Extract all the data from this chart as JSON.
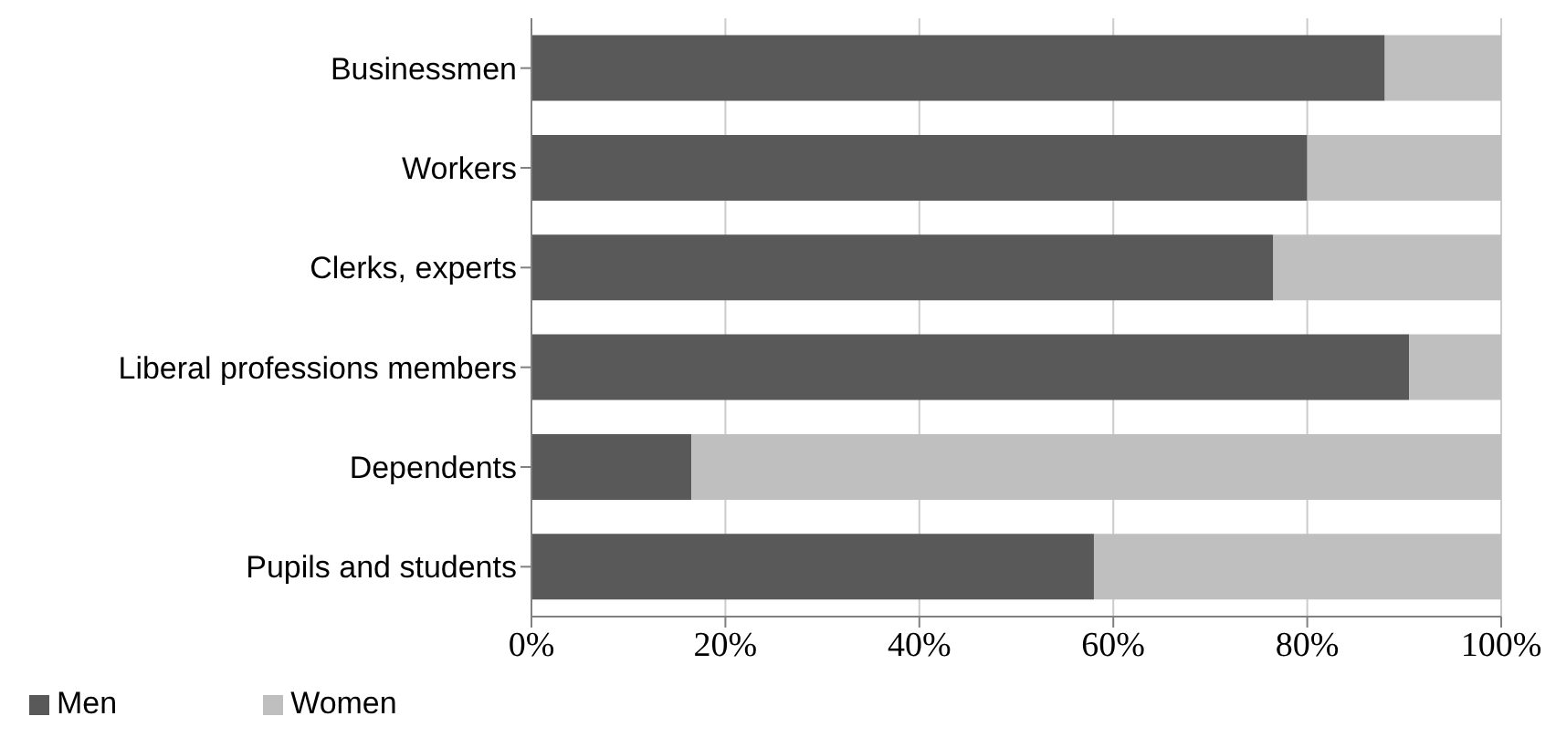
{
  "chart_data": {
    "type": "bar",
    "orientation": "horizontal",
    "stacked": true,
    "categories": [
      "Businessmen",
      "Workers",
      "Clerks, experts",
      "Liberal professions members",
      "Dependents",
      "Pupils and students"
    ],
    "series": [
      {
        "name": "Men",
        "color": "#595959",
        "values": [
          88,
          80,
          76.5,
          90.5,
          16.5,
          58
        ]
      },
      {
        "name": "Women",
        "color": "#bfbfbf",
        "values": [
          12,
          20,
          23.5,
          9.5,
          83.5,
          42
        ]
      }
    ],
    "xlim": [
      0,
      100
    ],
    "xticks": [
      {
        "value": 0,
        "label": "0%"
      },
      {
        "value": 20,
        "label": "20%"
      },
      {
        "value": 40,
        "label": "40%"
      },
      {
        "value": 60,
        "label": "60%"
      },
      {
        "value": 80,
        "label": "80%"
      },
      {
        "value": 100,
        "label": "100%"
      }
    ],
    "grid": "x",
    "legend": "bottom left"
  }
}
